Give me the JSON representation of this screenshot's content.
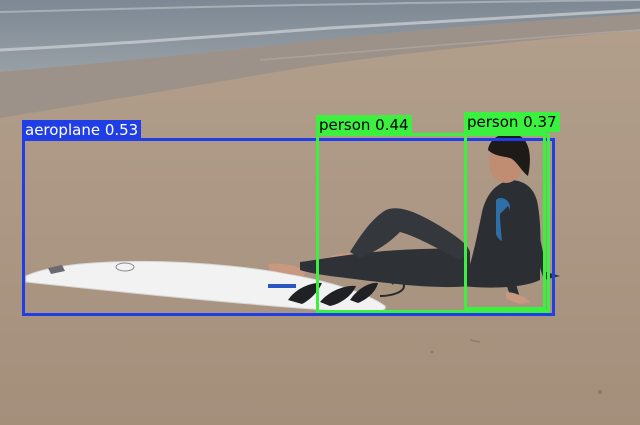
{
  "detections": [
    {
      "label": "aeroplane 0.53",
      "color": "#1f3ee6"
    },
    {
      "label": "person 0.44",
      "color": "#3cf040"
    },
    {
      "label": "person 0.37",
      "color": "#3cf040"
    }
  ],
  "colors": {
    "sea": "#8d98a3",
    "wet_sand": "#9a8f86",
    "sand": "#ac9884",
    "wetsuit": "#2d3136",
    "surfboard": "#f1f1f1"
  }
}
